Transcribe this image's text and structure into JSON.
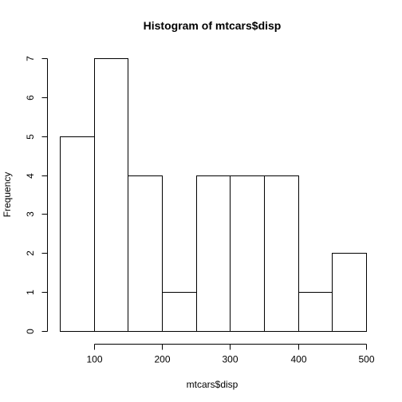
{
  "chart_data": {
    "type": "bar",
    "title": "Histogram of mtcars$disp",
    "xlabel": "mtcars$disp",
    "ylabel": "Frequency",
    "bins": [
      {
        "start": 50,
        "end": 100,
        "count": 5
      },
      {
        "start": 100,
        "end": 150,
        "count": 7
      },
      {
        "start": 150,
        "end": 200,
        "count": 4
      },
      {
        "start": 200,
        "end": 250,
        "count": 1
      },
      {
        "start": 250,
        "end": 300,
        "count": 4
      },
      {
        "start": 300,
        "end": 350,
        "count": 4
      },
      {
        "start": 350,
        "end": 400,
        "count": 4
      },
      {
        "start": 400,
        "end": 450,
        "count": 1
      },
      {
        "start": 450,
        "end": 500,
        "count": 2
      }
    ],
    "xlim": [
      50,
      500
    ],
    "ylim": [
      0,
      7
    ],
    "x_ticks": [
      "100",
      "200",
      "300",
      "400",
      "500"
    ],
    "y_ticks": [
      "0",
      "1",
      "2",
      "3",
      "4",
      "5",
      "6",
      "7"
    ],
    "grid": false,
    "bar_fill": "#ffffff",
    "bar_stroke": "#000000"
  }
}
